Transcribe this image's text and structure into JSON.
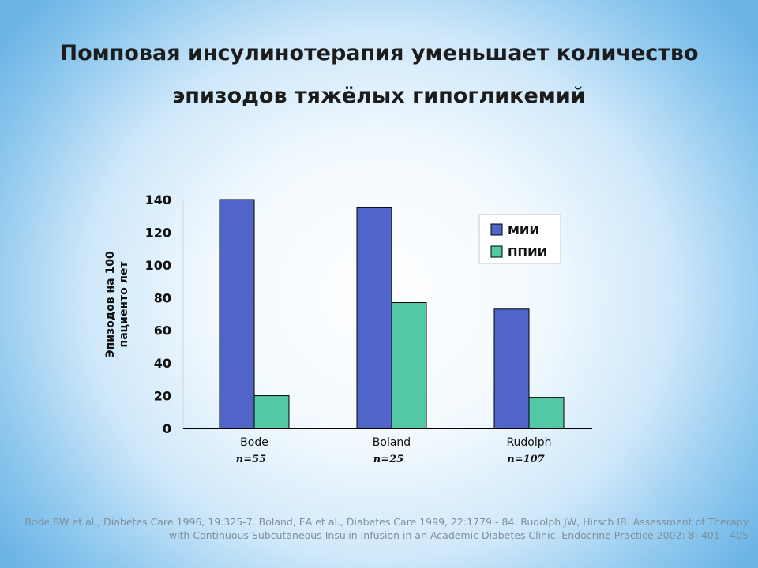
{
  "slide": {
    "title_line1": "Помповая инсулинотерапия уменьшает количество",
    "title_line2": "эпизодов тяжёлых гипогликемий",
    "references": "Bode,BW et al., Diabetes Care 1996, 19:325-7. Boland, EA et al., Diabetes Care 1999, 22:1779 - 84. Rudolph JW, Hirsch IB. Assessment of Therapy with Continuous Subcutaneous Insulin Infusion in an Academic Diabetes Clinic. Endocrine Practice 2002: 8; 401 - 405"
  },
  "colors": {
    "series_mii": "#4f66c8",
    "series_ppii": "#52c8a5"
  },
  "chart_data": {
    "type": "bar",
    "title": "",
    "ylabel_lines": [
      "Эпизодов на 100",
      "пациенто лет"
    ],
    "xlabel": "",
    "ylim": [
      0,
      140
    ],
    "yticks": [
      0,
      20,
      40,
      60,
      80,
      100,
      120,
      140
    ],
    "categories": [
      "Bode",
      "Boland",
      "Rudolph"
    ],
    "category_notes": [
      "n=55",
      "n=25",
      "n=107"
    ],
    "series": [
      {
        "name": "МИИ",
        "values": [
          140,
          135,
          73
        ]
      },
      {
        "name": "ППИИ",
        "values": [
          20,
          77,
          19
        ]
      }
    ],
    "legend_position": "top-right",
    "grid": false
  }
}
